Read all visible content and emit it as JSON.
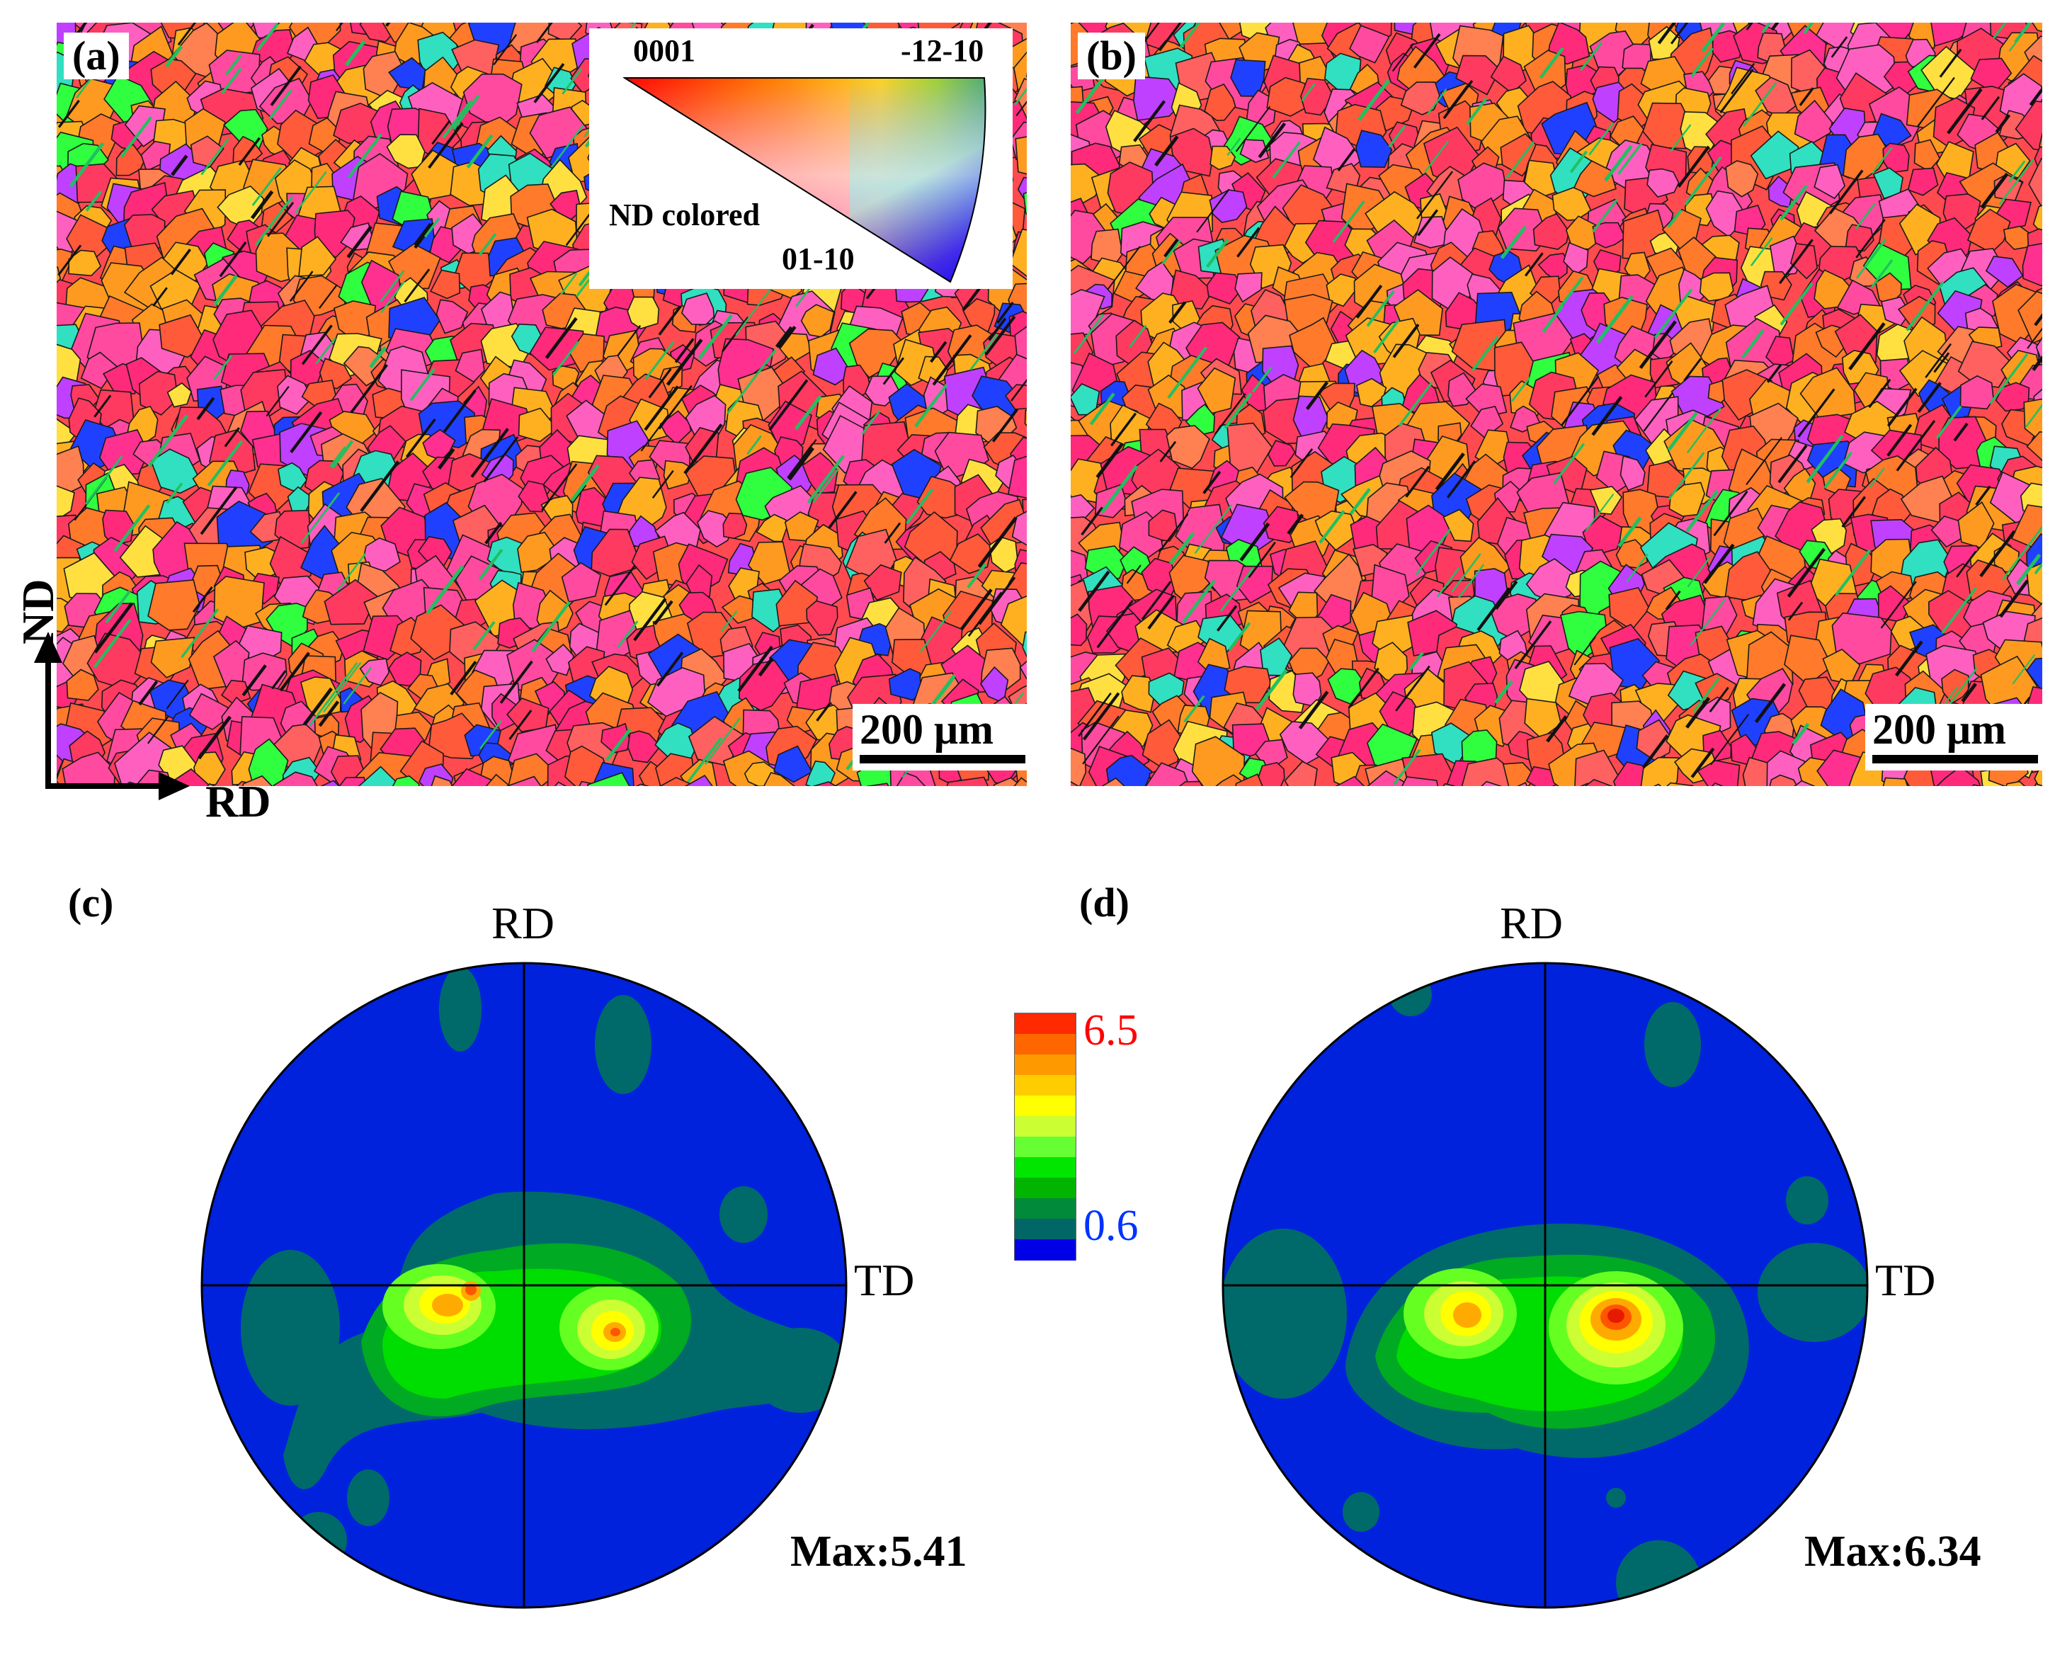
{
  "figure": {
    "panels": {
      "a": {
        "label": "(a)",
        "scale_bar": "200 μm"
      },
      "b": {
        "label": "(b)",
        "scale_bar": "200 μm"
      },
      "c": {
        "label": "(c)",
        "rd": "RD",
        "td": "TD",
        "max": "Max:5.41"
      },
      "d": {
        "label": "(d)",
        "rd": "RD",
        "td": "TD",
        "max": "Max:6.34"
      }
    },
    "ipf_legend": {
      "top_left": "0001",
      "top_right": "-12-10",
      "bottom": "01-10",
      "caption": "ND colored"
    },
    "axes": {
      "vertical": "ND",
      "horizontal": "RD"
    },
    "colorbar": {
      "max_label": "6.5",
      "min_label": "0.6",
      "max_color": "#ff0000",
      "min_color": "#0033ff",
      "levels": [
        "#0000e6",
        "#006666",
        "#008a3a",
        "#00b400",
        "#00e600",
        "#66ff33",
        "#ccff33",
        "#ffff00",
        "#ffcc00",
        "#ff9900",
        "#ff6600",
        "#ff2a00"
      ]
    },
    "palette": {
      "grain_colors": [
        "#ff3a60",
        "#ff5a3a",
        "#ff7a2a",
        "#ff9a20",
        "#ff2a7a",
        "#ff4aa0",
        "#ff60c0",
        "#ffb020",
        "#ffe040",
        "#30ff40",
        "#30e0c0",
        "#2040ff",
        "#c040ff",
        "#ff6060",
        "#ff8050",
        "#ff3090"
      ]
    }
  }
}
